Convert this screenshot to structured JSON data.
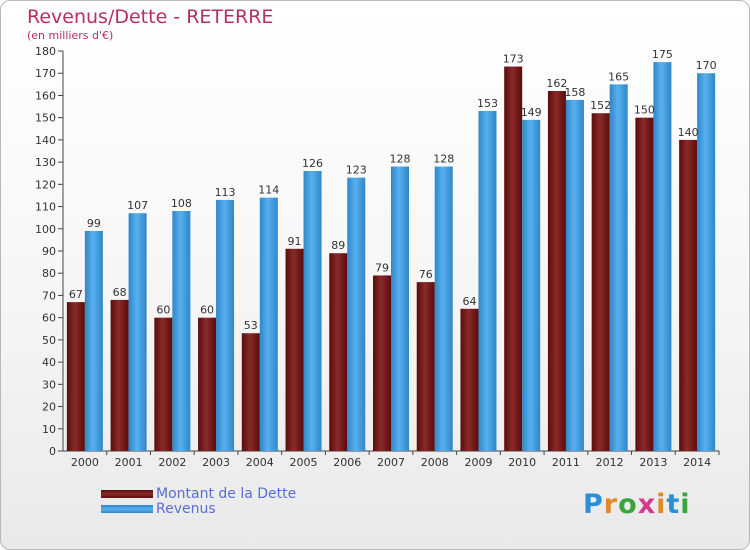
{
  "title": "Revenus/Dette - RETERRE",
  "subtitle": "(en milliers d'€)",
  "logo_text": "Proxiti",
  "colors": {
    "dette": "#7a1a1a",
    "revenus": "#3d9ee0",
    "title": "#b52f66",
    "legend_text": "#5a6cd6"
  },
  "chart_data": {
    "type": "bar",
    "title": "Revenus/Dette - RETERRE",
    "subtitle": "(en milliers d'€)",
    "categories": [
      "2000",
      "2001",
      "2002",
      "2003",
      "2004",
      "2005",
      "2006",
      "2007",
      "2008",
      "2009",
      "2010",
      "2011",
      "2012",
      "2013",
      "2014"
    ],
    "series": [
      {
        "name": "Montant de la Dette",
        "values": [
          67,
          68,
          60,
          60,
          53,
          91,
          89,
          79,
          76,
          64,
          173,
          162,
          152,
          150,
          140
        ]
      },
      {
        "name": "Revenus",
        "values": [
          99,
          107,
          108,
          113,
          114,
          126,
          123,
          128,
          128,
          153,
          149,
          158,
          165,
          175,
          170
        ]
      }
    ],
    "ylim": [
      0,
      180
    ],
    "yticks": [
      0,
      10,
      20,
      30,
      40,
      50,
      60,
      70,
      80,
      90,
      100,
      110,
      120,
      130,
      140,
      150,
      160,
      170,
      180
    ],
    "grid": false,
    "legend": "bottom-left"
  }
}
